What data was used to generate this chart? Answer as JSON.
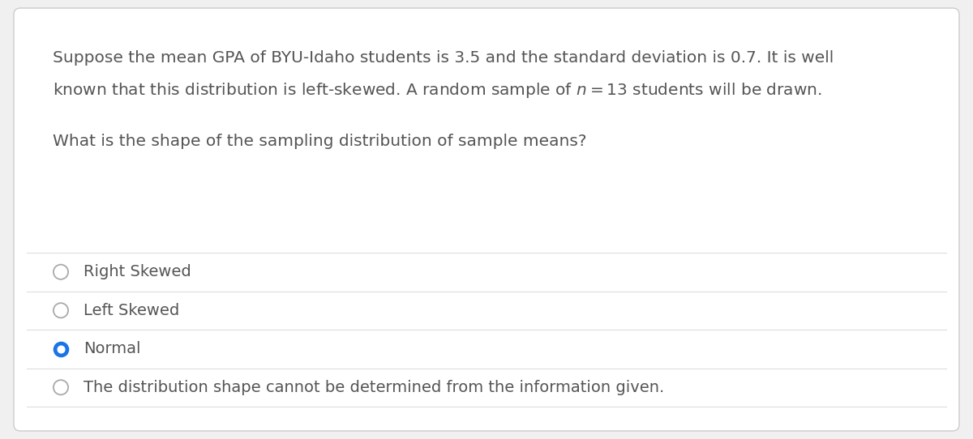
{
  "background_color": "#f0f0f0",
  "card_color": "#ffffff",
  "card_border_color": "#cccccc",
  "text_color": "#555555",
  "divider_color": "#dddddd",
  "selected_radio_fill": "#1a73e8",
  "selected_radio_border": "#1a73e8",
  "unselected_radio_border": "#aaaaaa",
  "line1": "Suppose the mean GPA of BYU-Idaho students is 3.5 and the standard deviation is 0.7. It is well",
  "line2": "known that this distribution is left-skewed. A random sample of $n = 13$ students will be drawn.",
  "question": "What is the shape of the sampling distribution of sample means?",
  "options": [
    {
      "label": "Right Skewed",
      "selected": false
    },
    {
      "label": "Left Skewed",
      "selected": false
    },
    {
      "label": "Normal",
      "selected": true
    },
    {
      "label": "The distribution shape cannot be determined from the information given.",
      "selected": false
    }
  ],
  "font_size_paragraph": 14.5,
  "font_size_question": 14.5,
  "font_size_options": 14
}
